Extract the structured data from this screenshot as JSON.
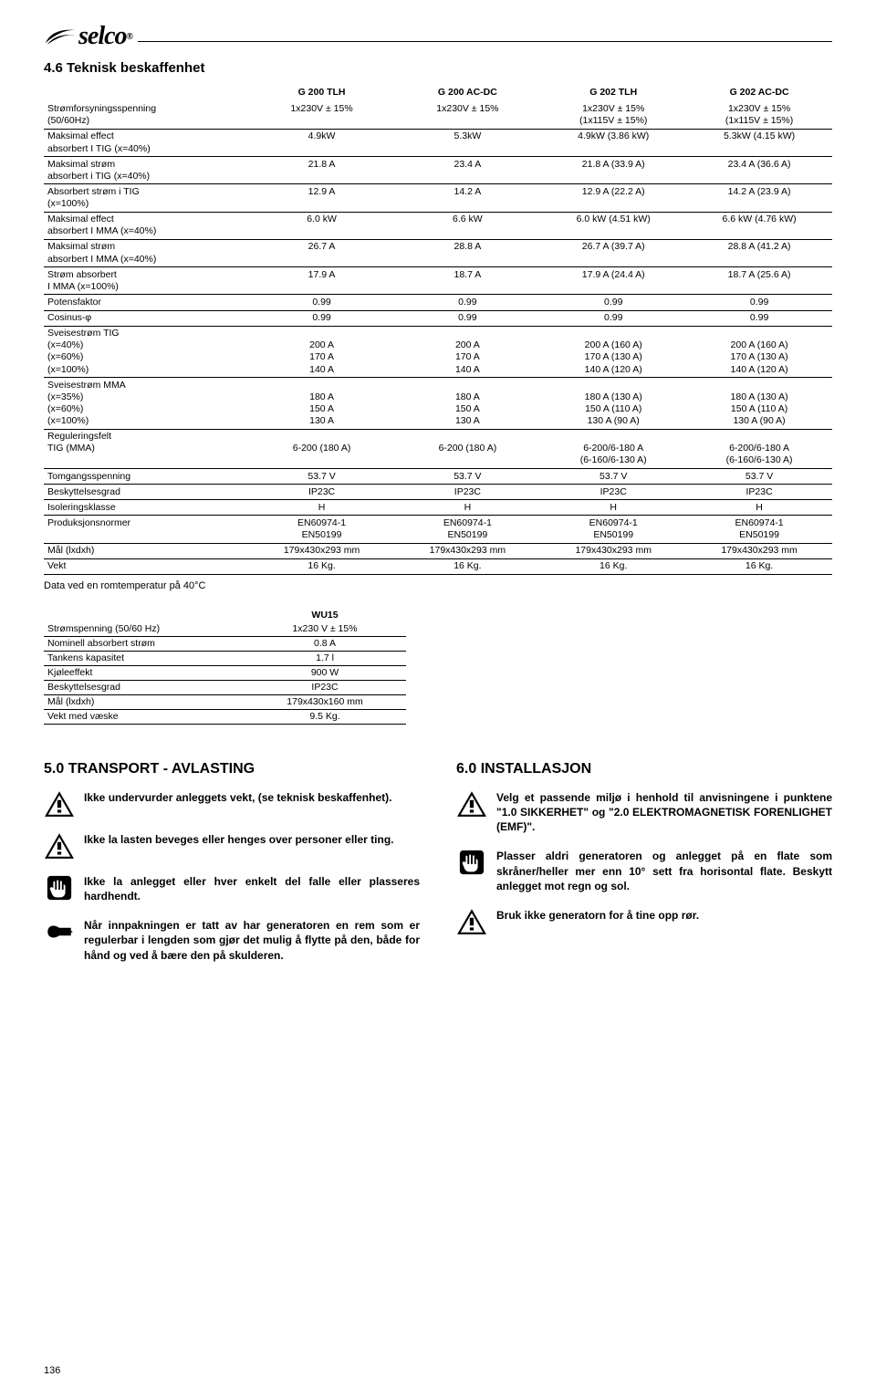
{
  "logo_text": "selco",
  "section_4_6": "4.6 Teknisk beskaffenhet",
  "table_main": {
    "headers": [
      "",
      "G 200 TLH",
      "G 200 AC-DC",
      "G 202 TLH",
      "G 202 AC-DC"
    ],
    "rows": [
      {
        "label": "Strømforsyningsspenning\n(50/60Hz)",
        "c": [
          "1x230V ± 15%",
          "1x230V ± 15%",
          "1x230V ± 15%\n(1x115V ± 15%)",
          "1x230V ± 15%\n(1x115V ± 15%)"
        ]
      },
      {
        "label": "Maksimal effect\nabsorbert I TIG (x=40%)",
        "c": [
          "4.9kW",
          "5.3kW",
          "4.9kW (3.86 kW)",
          "5.3kW (4.15 kW)"
        ]
      },
      {
        "label": "Maksimal strøm\nabsorbert i TIG (x=40%)",
        "c": [
          "21.8 A",
          "23.4 A",
          "21.8 A (33.9 A)",
          "23.4 A (36.6 A)"
        ]
      },
      {
        "label": "Absorbert strøm i TIG\n(x=100%)",
        "c": [
          "12.9 A",
          "14.2 A",
          "12.9 A (22.2 A)",
          "14.2 A (23.9 A)"
        ]
      },
      {
        "label": "Maksimal effect\nabsorbert I MMA (x=40%)",
        "c": [
          "6.0 kW",
          "6.6 kW",
          "6.0 kW (4.51 kW)",
          "6.6 kW (4.76 kW)"
        ]
      },
      {
        "label": "Maksimal strøm\nabsorbert I MMA (x=40%)",
        "c": [
          "26.7 A",
          "28.8 A",
          "26.7 A (39.7 A)",
          "28.8 A (41.2 A)"
        ]
      },
      {
        "label": "Strøm absorbert\nI MMA (x=100%)",
        "c": [
          "17.9 A",
          "18.7 A",
          "17.9 A (24.4 A)",
          "18.7 A (25.6 A)"
        ]
      },
      {
        "label": "Potensfaktor",
        "c": [
          "0.99",
          "0.99",
          "0.99",
          "0.99"
        ]
      },
      {
        "label": "Cosinus-φ",
        "c": [
          "0.99",
          "0.99",
          "0.99",
          "0.99"
        ]
      },
      {
        "label": "Sveisestrøm TIG\n(x=40%)\n(x=60%)\n(x=100%)",
        "c": [
          "\n200 A\n170 A\n140 A",
          "\n200 A\n170 A\n140 A",
          "\n200 A (160 A)\n170 A (130 A)\n140 A (120 A)",
          "\n200 A (160 A)\n170 A (130 A)\n140 A (120 A)"
        ]
      },
      {
        "label": "Sveisestrøm MMA\n(x=35%)\n(x=60%)\n(x=100%)",
        "c": [
          "\n180 A\n150 A\n130 A",
          "\n180 A\n150 A\n130 A",
          "\n180 A (130 A)\n150 A (110 A)\n130 A (90 A)",
          "\n180 A (130 A)\n150 A (110 A)\n130 A (90 A)"
        ]
      },
      {
        "label": "Reguleringsfelt\nTIG (MMA)",
        "c": [
          "\n6-200 (180 A)",
          "\n6-200 (180 A)",
          "\n6-200/6-180 A\n(6-160/6-130 A)",
          "\n6-200/6-180 A\n(6-160/6-130 A)"
        ]
      },
      {
        "label": "Tomgangsspenning",
        "c": [
          "53.7 V",
          "53.7 V",
          "53.7 V",
          "53.7 V"
        ]
      },
      {
        "label": "Beskyttelsesgrad",
        "c": [
          "IP23C",
          "IP23C",
          "IP23C",
          "IP23C"
        ]
      },
      {
        "label": "Isoleringsklasse",
        "c": [
          "H",
          "H",
          "H",
          "H"
        ]
      },
      {
        "label": "Produksjonsnormer",
        "c": [
          "EN60974-1\nEN50199",
          "EN60974-1\nEN50199",
          "EN60974-1\nEN50199",
          "EN60974-1\nEN50199"
        ]
      },
      {
        "label": "Mål (lxdxh)",
        "c": [
          "179x430x293 mm",
          "179x430x293 mm",
          "179x430x293 mm",
          "179x430x293 mm"
        ]
      },
      {
        "label": "Vekt",
        "c": [
          "16 Kg.",
          "16 Kg.",
          "16 Kg.",
          "16 Kg."
        ]
      }
    ]
  },
  "note_text": "Data ved en romtemperatur på 40°C",
  "wu_table": {
    "header": "WU15",
    "rows": [
      [
        "Strømspenning (50/60 Hz)",
        "1x230 V ± 15%"
      ],
      [
        "Nominell absorbert strøm",
        "0.8 A"
      ],
      [
        "Tankens kapasitet",
        "1.7 l"
      ],
      [
        "Kjøleeffekt",
        "900 W"
      ],
      [
        "Beskyttelsesgrad",
        "IP23C"
      ],
      [
        "Mål (lxdxh)",
        "179x430x160 mm"
      ],
      [
        "Vekt med væske",
        "9.5 Kg."
      ]
    ]
  },
  "section_5": {
    "title": "5.0 TRANSPORT - AVLASTING",
    "items": [
      {
        "icon": "warning",
        "text": "Ikke undervurder anleggets vekt, (se teknisk beskaffenhet)."
      },
      {
        "icon": "warning",
        "text": "Ikke la lasten beveges eller henges over personer eller ting."
      },
      {
        "icon": "hand",
        "text": "Ikke la anlegget eller hver enkelt del falle eller plasseres hardhendt."
      },
      {
        "icon": "pointer",
        "text": "Når innpakningen er tatt av har generatoren en rem som er regulerbar i lengden som gjør det mulig å flytte på den, både for hånd og ved å bære den på skulderen."
      }
    ]
  },
  "section_6": {
    "title": "6.0 INSTALLASJON",
    "items": [
      {
        "icon": "warning",
        "text": "Velg et passende miljø i henhold til anvisningene i punktene \"1.0 SIKKERHET\" og \"2.0 ELEKTROMAGNETISK FORENLIGHET (EMF)\"."
      },
      {
        "icon": "hand",
        "text": "Plasser aldri generatoren og anlegget på en flate som skråner/heller mer enn 10° sett fra horisontal flate. Beskytt anlegget mot regn og sol."
      },
      {
        "icon": "warning",
        "text": "Bruk ikke generatorn for å tine opp rør."
      }
    ]
  },
  "page_number": "136"
}
